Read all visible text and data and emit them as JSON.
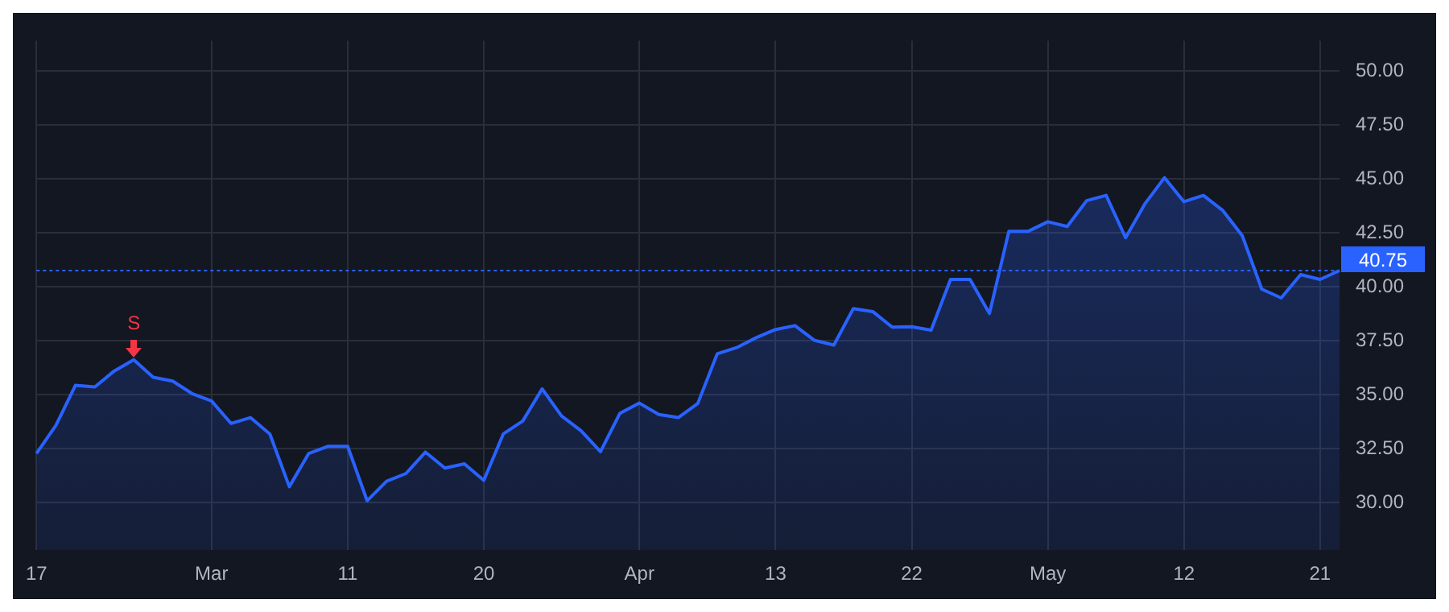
{
  "chart_data": {
    "type": "area",
    "categories": [
      "17",
      null,
      null,
      null,
      null,
      null,
      null,
      null,
      null,
      "Mar",
      null,
      null,
      null,
      null,
      null,
      null,
      "11",
      null,
      null,
      null,
      null,
      null,
      null,
      "20",
      null,
      null,
      null,
      null,
      null,
      null,
      null,
      "Apr",
      null,
      null,
      null,
      null,
      null,
      null,
      "13",
      null,
      null,
      null,
      null,
      null,
      null,
      "22",
      null,
      null,
      null,
      null,
      null,
      null,
      "May",
      null,
      null,
      null,
      null,
      null,
      null,
      "12",
      null,
      null,
      null,
      null,
      null,
      null,
      "21",
      null
    ],
    "series": [
      {
        "color": "#2962ff",
        "values": [
          32.28,
          33.58,
          35.43,
          35.36,
          36.1,
          36.62,
          35.81,
          35.63,
          35.05,
          34.71,
          33.67,
          33.94,
          33.18,
          30.74,
          32.28,
          32.61,
          32.61,
          30.09,
          30.99,
          31.35,
          32.34,
          31.6,
          31.8,
          31.03,
          33.18,
          33.78,
          35.27,
          34.01,
          33.33,
          32.36,
          34.14,
          34.61,
          34.08,
          33.94,
          34.59,
          36.89,
          37.18,
          37.64,
          38.02,
          38.2,
          37.52,
          37.3,
          38.99,
          38.85,
          38.13,
          38.15,
          37.99,
          40.34,
          40.34,
          38.76,
          42.57,
          42.57,
          43.01,
          42.79,
          43.99,
          44.23,
          42.27,
          43.85,
          45.05,
          43.94,
          44.23,
          43.53,
          42.36,
          39.89,
          39.48,
          40.56,
          40.34,
          40.75
        ]
      }
    ],
    "ylim": [
      27.8,
      51.4
    ],
    "yticks": [
      {
        "value": 30,
        "label": "30.00"
      },
      {
        "value": 32.5,
        "label": "32.50"
      },
      {
        "value": 35,
        "label": "35.00"
      },
      {
        "value": 37.5,
        "label": "37.50"
      },
      {
        "value": 40,
        "label": "40.00"
      },
      {
        "value": 42.5,
        "label": "42.50"
      },
      {
        "value": 45,
        "label": "45.00"
      },
      {
        "value": 47.5,
        "label": "47.50"
      },
      {
        "value": 50,
        "label": "50.00"
      }
    ],
    "ref_lines": [
      {
        "axis": "y",
        "value": 40.75,
        "label": "40.75",
        "color": "#2962ff",
        "line_style": "dotted"
      }
    ],
    "annotations": [
      {
        "text": "S",
        "y": 36.62
      }
    ],
    "grid": true,
    "legend": false,
    "marker": "none",
    "line_style": "solid"
  }
}
